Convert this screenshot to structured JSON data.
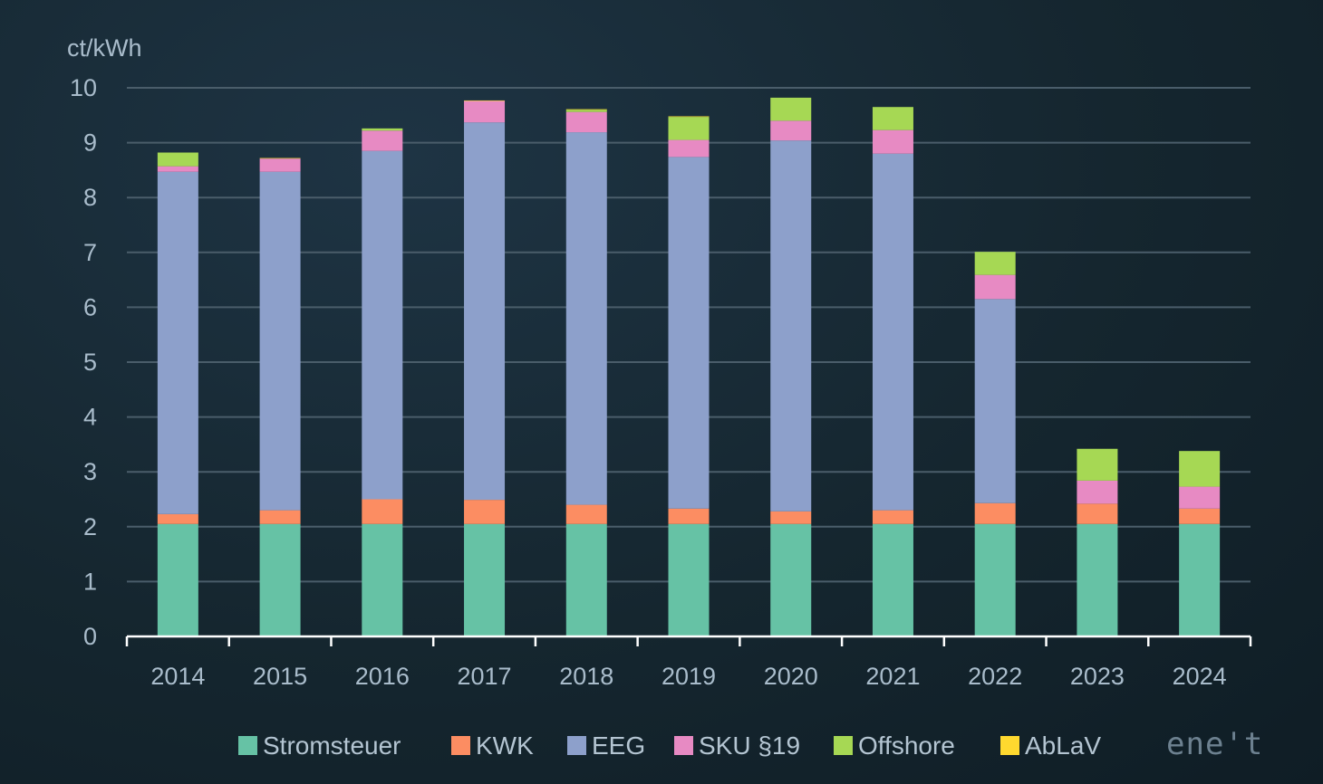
{
  "chart_data": {
    "type": "bar",
    "stacked": true,
    "ylabel": "ct/kWh",
    "ylim": [
      0,
      10
    ],
    "yticks": [
      0,
      1,
      2,
      3,
      4,
      5,
      6,
      7,
      8,
      9,
      10
    ],
    "grid": true,
    "legend_position": "bottom",
    "categories": [
      "2014",
      "2015",
      "2016",
      "2017",
      "2018",
      "2019",
      "2020",
      "2021",
      "2022",
      "2023",
      "2024"
    ],
    "series": [
      {
        "name": "Stromsteuer",
        "color": "#66c2a5",
        "values": [
          2.05,
          2.05,
          2.05,
          2.05,
          2.05,
          2.05,
          2.05,
          2.05,
          2.05,
          2.05,
          2.05
        ]
      },
      {
        "name": "KWK",
        "color": "#fc8d62",
        "values": [
          0.18,
          0.25,
          0.45,
          0.44,
          0.35,
          0.28,
          0.23,
          0.25,
          0.38,
          0.37,
          0.28
        ]
      },
      {
        "name": "EEG",
        "color": "#8da0cb",
        "values": [
          6.24,
          6.17,
          6.35,
          6.88,
          6.79,
          6.41,
          6.76,
          6.5,
          3.72,
          0.0,
          0.0
        ]
      },
      {
        "name": "SKU §19",
        "color": "#e78ac3",
        "values": [
          0.1,
          0.24,
          0.37,
          0.39,
          0.37,
          0.31,
          0.36,
          0.43,
          0.44,
          0.42,
          0.4
        ]
      },
      {
        "name": "Offshore",
        "color": "#a6d854",
        "values": [
          0.25,
          0.0,
          0.04,
          0.0,
          0.04,
          0.42,
          0.42,
          0.42,
          0.42,
          0.58,
          0.65
        ]
      },
      {
        "name": "AbLaV",
        "color": "#ffd92f",
        "values": [
          0.0,
          0.01,
          0.0,
          0.01,
          0.01,
          0.01,
          0.0,
          0.0,
          0.0,
          0.0,
          0.0
        ]
      }
    ]
  },
  "logo": {
    "text": "ene't"
  }
}
